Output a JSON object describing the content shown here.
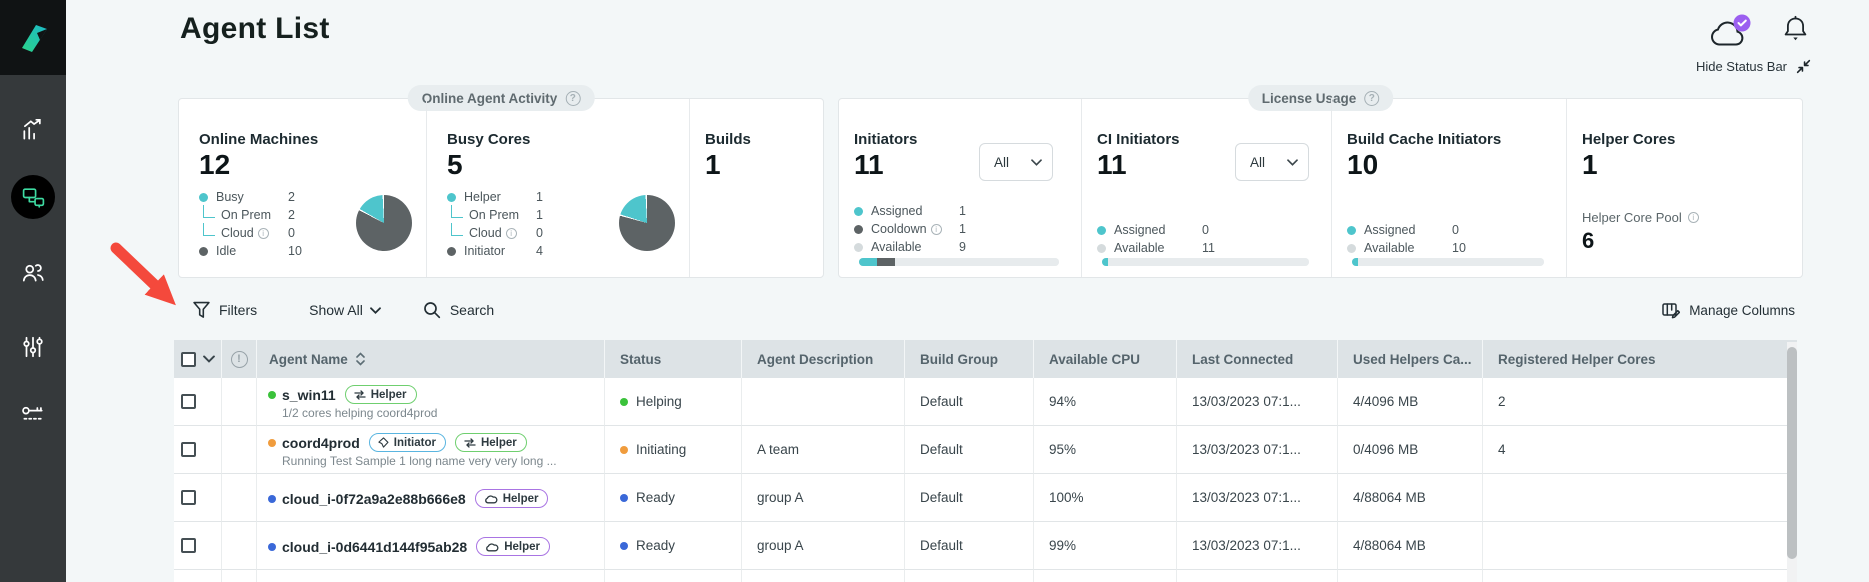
{
  "app": {
    "title": "Agent List",
    "hide_status_bar_label": "Hide Status Bar"
  },
  "status_bar": {
    "online_agent_activity": {
      "label": "Online Agent Activity",
      "online_machines": {
        "title": "Online Machines",
        "value": "12",
        "busy_label": "Busy",
        "busy_value": "2",
        "on_prem_label": "On Prem",
        "on_prem_value": "2",
        "cloud_label": "Cloud",
        "cloud_value": "0",
        "idle_label": "Idle",
        "idle_value": "10",
        "pie": {
          "accent": 2,
          "total": 12
        }
      },
      "busy_cores": {
        "title": "Busy Cores",
        "value": "5",
        "helper_label": "Helper",
        "helper_value": "1",
        "on_prem_label": "On Prem",
        "on_prem_value": "1",
        "cloud_label": "Cloud",
        "cloud_value": "0",
        "initiator_label": "Initiator",
        "initiator_value": "4",
        "pie": {
          "accent": 1,
          "total": 5
        }
      },
      "builds": {
        "title": "Builds",
        "value": "1"
      }
    },
    "license_usage": {
      "label": "License Usage",
      "initiators": {
        "title": "Initiators",
        "value": "11",
        "filter_value": "All",
        "assigned_label": "Assigned",
        "assigned_value": "1",
        "cooldown_label": "Cooldown",
        "cooldown_value": "1",
        "available_label": "Available",
        "available_value": "9",
        "bar": {
          "values": [
            1,
            1,
            9
          ],
          "colors": [
            "#4ec5cc",
            "#5d6365",
            "#e7ebed"
          ]
        }
      },
      "ci_initiators": {
        "title": "CI Initiators",
        "value": "11",
        "filter_value": "All",
        "assigned_label": "Assigned",
        "assigned_value": "0",
        "available_label": "Available",
        "available_value": "11",
        "bar": {
          "values": [
            0,
            11
          ],
          "colors": [
            "#4ec5cc",
            "#e7ebed"
          ]
        }
      },
      "build_cache_initiators": {
        "title": "Build Cache Initiators",
        "value": "10",
        "assigned_label": "Assigned",
        "assigned_value": "0",
        "available_label": "Available",
        "available_value": "10",
        "bar": {
          "values": [
            0,
            10
          ],
          "colors": [
            "#4ec5cc",
            "#e7ebed"
          ]
        }
      },
      "helper_cores": {
        "title": "Helper Cores",
        "value": "1",
        "pool_label": "Helper Core Pool",
        "pool_value": "6"
      }
    }
  },
  "toolbar": {
    "filters_label": "Filters",
    "show_all_label": "Show All",
    "search_label": "Search",
    "manage_columns_label": "Manage Columns"
  },
  "table": {
    "headers": [
      "Agent Name",
      "Status",
      "Agent Description",
      "Build Group",
      "Available CPU",
      "Last Connected",
      "Used Helpers Ca...",
      "Registered Helper Cores"
    ],
    "rows": [
      {
        "name": "s_win11",
        "dot_color": "#3bc23b",
        "badges": [
          {
            "type": "helper",
            "label": "Helper"
          }
        ],
        "subtitle": "1/2 cores helping coord4prod",
        "status": "Helping",
        "status_color": "#3bc23b",
        "description": "",
        "build_group": "Default",
        "available_cpu": "94%",
        "last_connected": "13/03/2023 07:1...",
        "used_helpers": "4/4096 MB",
        "registered_helper_cores": "2"
      },
      {
        "name": "coord4prod",
        "dot_color": "#f09c3d",
        "badges": [
          {
            "type": "initiator",
            "label": "Initiator"
          },
          {
            "type": "helper",
            "label": "Helper"
          }
        ],
        "subtitle": "Running Test Sample 1 long name very very long ...",
        "status": "Initiating",
        "status_color": "#f09c3d",
        "description": "A team",
        "build_group": "Default",
        "available_cpu": "95%",
        "last_connected": "13/03/2023 07:1...",
        "used_helpers": "0/4096 MB",
        "registered_helper_cores": "4"
      },
      {
        "name": "cloud_i-0f72a9a2e88b666e8",
        "dot_color": "#3a68d8",
        "badges": [
          {
            "type": "cloud-helper",
            "label": "Helper"
          }
        ],
        "subtitle": "",
        "status": "Ready",
        "status_color": "#3a68d8",
        "description": "group A",
        "build_group": "Default",
        "available_cpu": "100%",
        "last_connected": "13/03/2023 07:1...",
        "used_helpers": "4/88064 MB",
        "registered_helper_cores": ""
      },
      {
        "name": "cloud_i-0d6441d144f95ab28",
        "dot_color": "#3a68d8",
        "badges": [
          {
            "type": "cloud-helper",
            "label": "Helper"
          }
        ],
        "subtitle": "",
        "status": "Ready",
        "status_color": "#3a68d8",
        "description": "group A",
        "build_group": "Default",
        "available_cpu": "99%",
        "last_connected": "13/03/2023 07:1...",
        "used_helpers": "4/88064 MB",
        "registered_helper_cores": ""
      }
    ]
  },
  "colors": {
    "accent_teal": "#4ec5cc",
    "pie_dark": "#5d6365",
    "available_gray": "#d5dbdd",
    "status_green": "#3bc23b",
    "status_orange": "#f09c3d",
    "status_blue": "#3a68d8",
    "badge_helper_border": "#6fcf6f",
    "badge_initiator_border": "#5ab5e0",
    "badge_cloud_border": "#a974e3",
    "notification_badge_purple": "#9b5ff0",
    "annotation_red": "#f4493c"
  }
}
